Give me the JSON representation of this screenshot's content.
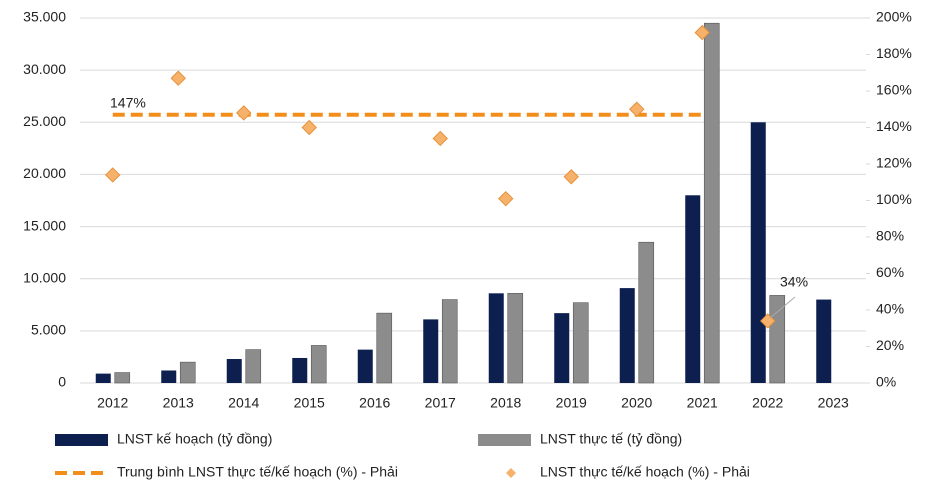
{
  "chart_data": {
    "type": "bar",
    "categories": [
      "2012",
      "2013",
      "2014",
      "2015",
      "2016",
      "2017",
      "2018",
      "2019",
      "2020",
      "2021",
      "2022",
      "2023"
    ],
    "series": [
      {
        "name": "LNST kế hoạch (tỷ đồng)",
        "type": "bar",
        "color": "#0d1f4f",
        "values": [
          900,
          1200,
          2300,
          2400,
          3200,
          6100,
          8600,
          6700,
          9100,
          18000,
          25000,
          8000
        ]
      },
      {
        "name": "LNST thực tế (tỷ đồng)",
        "type": "bar",
        "color": "#8c8c8c",
        "values": [
          1000,
          2000,
          3200,
          3600,
          6700,
          8000,
          8600,
          7700,
          13500,
          34500,
          8400,
          null
        ]
      },
      {
        "name": "Trung bình LNST thực tế/kế hoạch (%) - Phải",
        "type": "line",
        "axis": "y2",
        "color": "#f28e1c",
        "values": [
          147,
          147,
          147,
          147,
          147,
          147,
          147,
          147,
          147,
          147,
          null,
          null
        ]
      },
      {
        "name": "LNST thực tế/kế hoạch (%) - Phải",
        "type": "scatter",
        "axis": "y2",
        "color": "#f6b26b",
        "values": [
          114,
          167,
          148,
          140,
          null,
          134,
          101,
          113,
          150,
          192,
          34,
          null
        ]
      }
    ],
    "annotations": [
      {
        "text": "147%"
      },
      {
        "text": "34%"
      }
    ],
    "ylim": [
      0,
      35000
    ],
    "yticks": [
      0,
      {
        "value": 5000,
        "label": "5.000"
      },
      {
        "value": 10000,
        "label": "10.000"
      },
      {
        "value": 15000,
        "label": "15.000"
      },
      {
        "value": 20000,
        "label": "20.000"
      },
      {
        "value": 25000,
        "label": "25.000"
      },
      {
        "value": 30000,
        "label": "30.000"
      },
      {
        "value": 35000,
        "label": "35.000"
      }
    ],
    "y2lim": [
      0,
      200
    ],
    "y2ticks": [
      {
        "value": 0,
        "label": "0%"
      },
      {
        "value": 20,
        "label": "20%"
      },
      {
        "value": 40,
        "label": "40%"
      },
      {
        "value": 60,
        "label": "60%"
      },
      {
        "value": 80,
        "label": "80%"
      },
      {
        "value": 100,
        "label": "100%"
      },
      {
        "value": 120,
        "label": "120%"
      },
      {
        "value": 140,
        "label": "140%"
      },
      {
        "value": 160,
        "label": "160%"
      },
      {
        "value": 180,
        "label": "180%"
      },
      {
        "value": 200,
        "label": "200%"
      }
    ],
    "grid": true
  }
}
